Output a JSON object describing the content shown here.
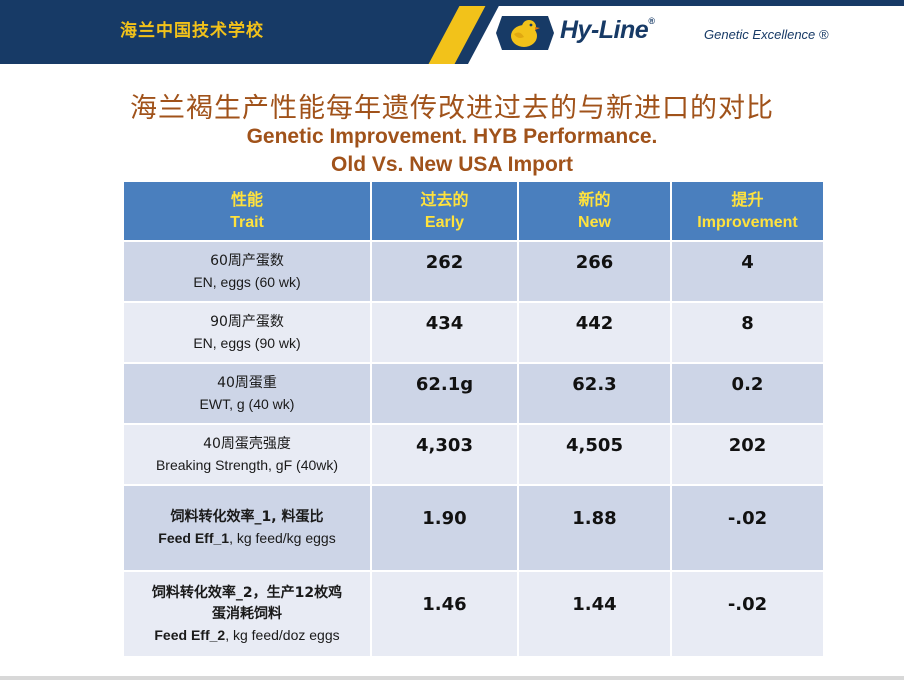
{
  "header": {
    "school": "海兰中国技术学校",
    "brand": "Hy-Line",
    "brand_mark": "®",
    "tagline": "Genetic Excellence ®"
  },
  "titles": {
    "cn": "海兰褐生产性能每年遗传改进过去的与新进口的对比",
    "en_line1": "Genetic Improvement. HYB Performance.",
    "en_line2": "Old Vs. New USA Import"
  },
  "colors": {
    "header_bg": "#173a66",
    "accent_yellow": "#f2c21a",
    "title_brown": "#a0521a",
    "table_header": "#4a7fbe"
  },
  "table": {
    "headers": [
      {
        "cn": "性能",
        "en": "Trait"
      },
      {
        "cn": "过去的",
        "en": "Early"
      },
      {
        "cn": "新的",
        "en": "New"
      },
      {
        "cn": "提升",
        "en": "Improvement"
      }
    ],
    "rows": [
      {
        "trait_cn": "60周产蛋数",
        "trait_en": "EN, eggs  (60 wk)",
        "early": "262",
        "new": "266",
        "improvement": "4"
      },
      {
        "trait_cn": "90周产蛋数",
        "trait_en": "EN, eggs (90 wk)",
        "early": "434",
        "new": "442",
        "improvement": "8"
      },
      {
        "trait_cn": "40周蛋重",
        "trait_en": "EWT, g (40 wk)",
        "early": "62.1g",
        "new": "62.3",
        "improvement": "0.2"
      },
      {
        "trait_cn": "40周蛋壳强度",
        "trait_en": "Breaking Strength, gF (40wk)",
        "early": "4,303",
        "new": "4,505",
        "improvement": "202"
      },
      {
        "trait_cn": "饲料转化效率_1, 料蛋比",
        "trait_en_bold": "Feed Eff_1",
        "trait_en_rest": ", kg feed/kg eggs",
        "early": "1.90",
        "new": "1.88",
        "improvement": "-.02"
      },
      {
        "trait_cn": "饲料转化效率_2，生产12枚鸡",
        "trait_cn2": "蛋消耗饲料",
        "trait_en_bold": "Feed Eff_2",
        "trait_en_rest": ", kg feed/doz eggs",
        "early": "1.46",
        "new": "1.44",
        "improvement": "-.02"
      }
    ]
  }
}
